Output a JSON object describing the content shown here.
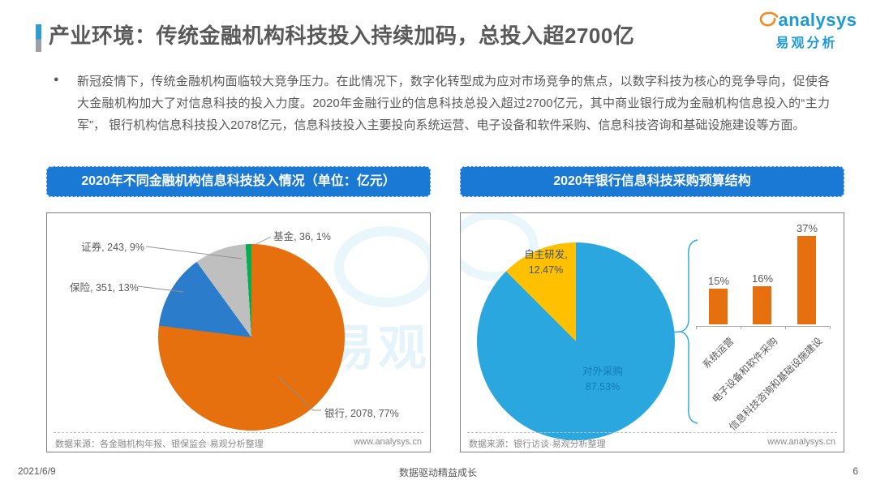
{
  "page": {
    "title": "产业环境：传统金融机构科技投入持续加码，总投入超2700亿",
    "logo": {
      "brand": "analysys",
      "brand_cn": "易观分析"
    },
    "bullet_text": "新冠疫情下，传统金融机构面临较大竞争压力。在此情况下，数字化转型成为应对市场竞争的焦点，以数字科技为核心的竞争导向，促使各大金融机构加大了对信息科技的投入力度。2020年金融行业的信息科技总投入超过2700亿元，其中商业银行成为金融机构信息投入的“主力军”， 银行机构信息科技投入2078亿元，信息科技投入主要投向系统运营、电子设备和软件采购、信息科技咨询和基础设施建设等方面。",
    "watermark": "易观",
    "footer": {
      "date": "2021/6/9",
      "slogan": "数据驱动精益成长",
      "page_number": "6"
    }
  },
  "left_panel": {
    "header": "2020年不同金融机构信息科技投入情况（单位：亿元）",
    "source": "数据来源：各金融机构年报、银保监会·易观分析整理",
    "website": "www.analysys.cn"
  },
  "right_panel": {
    "header": "2020年银行信息科技采购预算结构",
    "source": "数据来源：银行访谈·易观分析整理",
    "website": "www.analysys.cn"
  },
  "chart_data": [
    {
      "type": "pie",
      "title": "2020年不同金融机构信息科技投入情况",
      "unit": "亿元",
      "start_angle_deg": 0,
      "direction": "clockwise",
      "slices": [
        {
          "label": "银行",
          "value": 2078,
          "percent": 77,
          "color": "#e66f0e",
          "display": "银行, 2078, 77%"
        },
        {
          "label": "保险",
          "value": 351,
          "percent": 13,
          "color": "#2b7ccb",
          "display": "保险, 351, 13%"
        },
        {
          "label": "证券",
          "value": 243,
          "percent": 9,
          "color": "#bfbfbf",
          "display": "证券, 243, 9%"
        },
        {
          "label": "基金",
          "value": 36,
          "percent": 1,
          "color": "#00b050",
          "display": "基金, 36, 1%"
        }
      ]
    },
    {
      "type": "pie",
      "title": "2020年银行信息科技采购预算结构（采购方式占比）",
      "start_angle_deg": 0,
      "direction": "clockwise",
      "slices": [
        {
          "label": "对外采购",
          "percent": 87.53,
          "color": "#2aa7df",
          "display_lines": [
            "对外采购",
            "87.53%"
          ]
        },
        {
          "label": "自主研发",
          "percent": 12.47,
          "color": "#ffc000",
          "display_lines": [
            "自主研发,",
            "12.47%"
          ]
        }
      ]
    },
    {
      "type": "bar",
      "title": "对外采购预算构成",
      "categories": [
        "系统运营",
        "电子设备和软件采购",
        "信息科技咨询和基础设施建设"
      ],
      "values": [
        15,
        16,
        37
      ],
      "value_labels": [
        "15%",
        "16%",
        "37%"
      ],
      "bar_color": "#e66f0e",
      "ylim": [
        0,
        40
      ],
      "grid": false
    }
  ]
}
